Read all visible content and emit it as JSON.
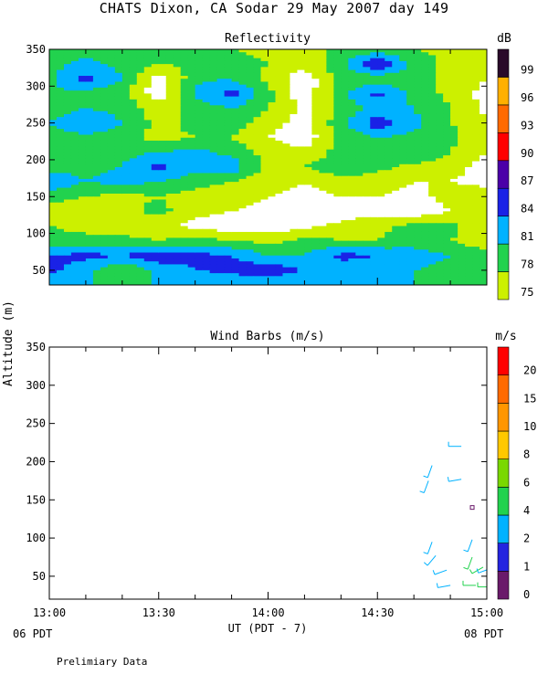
{
  "title": "CHATS Dixon, CA  Sodar  29 May 2007  day 149",
  "footer_note": "Prelimiary Data",
  "y_axis_label": "Altitude (m)",
  "x_axis_label": "UT  (PDT - 7)",
  "x_start_local": "06 PDT",
  "x_end_local": "08 PDT",
  "chart_data": [
    {
      "type": "heatmap",
      "title": "Reflectivity",
      "xlabel": "UT  (PDT - 7)",
      "ylabel": "Altitude (m)",
      "xlim": [
        "13:00",
        "15:00"
      ],
      "ylim": [
        30,
        350
      ],
      "x_ticks": [
        "13:00",
        "13:30",
        "14:00",
        "14:30",
        "15:00"
      ],
      "y_ticks": [
        50,
        100,
        150,
        200,
        250,
        300,
        350
      ],
      "colorbar": {
        "unit": "dB",
        "levels": [
          75,
          78,
          81,
          84,
          87,
          90,
          93,
          96,
          99
        ],
        "colors": [
          "#ccf000",
          "#22d24e",
          "#00b2ff",
          "#1a22e6",
          "#4b00a8",
          "#ff0000",
          "#ff6a00",
          "#ffb000",
          "#2a0a2a"
        ]
      },
      "x_minutes": [
        0,
        10,
        20,
        30,
        40,
        50,
        60,
        70,
        80,
        90,
        100,
        110,
        120
      ],
      "altitudes": [
        350,
        330,
        310,
        290,
        270,
        250,
        230,
        210,
        190,
        170,
        150,
        130,
        110,
        90,
        70,
        50,
        30
      ],
      "z_db": [
        [
          79,
          80,
          79,
          78,
          79,
          78,
          77,
          76,
          79,
          79,
          78,
          77,
          76
        ],
        [
          80,
          82,
          80,
          78,
          79,
          80,
          78,
          76,
          80,
          87,
          80,
          77,
          76
        ],
        [
          80,
          85,
          81,
          73,
          80,
          81,
          77,
          73,
          79,
          79,
          79,
          77,
          75
        ],
        [
          81,
          80,
          79,
          73,
          82,
          85,
          79,
          73,
          80,
          85,
          80,
          77,
          74
        ],
        [
          79,
          81,
          80,
          76,
          79,
          81,
          78,
          74,
          79,
          82,
          81,
          78,
          74
        ],
        [
          81,
          84,
          81,
          77,
          79,
          80,
          76,
          74,
          80,
          86,
          82,
          78,
          76
        ],
        [
          79,
          80,
          79,
          77,
          78,
          78,
          75,
          73,
          79,
          81,
          80,
          79,
          75
        ],
        [
          78,
          79,
          80,
          81,
          82,
          80,
          77,
          76,
          79,
          80,
          81,
          78,
          75
        ],
        [
          79,
          80,
          81,
          85,
          82,
          83,
          77,
          78,
          80,
          79,
          77,
          76,
          74
        ],
        [
          84,
          81,
          82,
          81,
          79,
          78,
          76,
          75,
          77,
          76,
          75,
          75,
          74
        ],
        [
          79,
          78,
          77,
          78,
          77,
          76,
          75,
          74,
          75,
          75,
          74,
          76,
          77
        ],
        [
          77,
          76,
          77,
          79,
          76,
          75,
          74,
          73,
          73,
          74,
          73,
          75,
          76
        ],
        [
          78,
          77,
          76,
          76,
          74,
          73,
          73,
          74,
          76,
          77,
          79,
          79,
          75
        ],
        [
          79,
          79,
          79,
          78,
          79,
          78,
          77,
          79,
          78,
          78,
          80,
          78,
          76
        ],
        [
          84,
          85,
          84,
          86,
          85,
          84,
          81,
          81,
          85,
          84,
          82,
          81,
          79
        ],
        [
          85,
          82,
          78,
          82,
          84,
          85,
          86,
          84,
          82,
          81,
          81,
          80,
          79
        ],
        [
          81,
          81,
          81,
          81,
          81,
          81,
          81,
          81,
          81,
          81,
          81,
          81,
          81
        ]
      ]
    },
    {
      "type": "scatter",
      "title": "Wind Barbs (m/s)",
      "xlabel": "UT  (PDT - 7)",
      "ylabel": "Altitude (m)",
      "xlim": [
        "13:00",
        "15:00"
      ],
      "ylim": [
        20,
        350
      ],
      "x_ticks": [
        "13:00",
        "13:30",
        "14:00",
        "14:30",
        "15:00"
      ],
      "y_ticks": [
        50,
        100,
        150,
        200,
        250,
        300,
        350
      ],
      "colorbar": {
        "unit": "m/s",
        "labels": [
          "0",
          "1",
          "2",
          "4",
          "6",
          "8",
          "10",
          "15",
          "20"
        ],
        "colors": [
          "#6a1a6a",
          "#2424e0",
          "#00b2ff",
          "#22d24e",
          "#7ad800",
          "#ffc800",
          "#ff9600",
          "#ff6a00",
          "#ff0000"
        ]
      },
      "barbs": [
        {
          "t": 113,
          "alt": 220,
          "dir": 270,
          "speed": 2.0,
          "color": "#00b2ff"
        },
        {
          "t": 105,
          "alt": 195,
          "dir": 200,
          "speed": 2.5,
          "color": "#00b2ff"
        },
        {
          "t": 104,
          "alt": 175,
          "dir": 200,
          "speed": 2.5,
          "color": "#00b2ff"
        },
        {
          "t": 113,
          "alt": 177,
          "dir": 260,
          "speed": 2.5,
          "color": "#00b2ff"
        },
        {
          "t": 116,
          "alt": 140,
          "dir": 0,
          "speed": 0.4,
          "color": "#6a1a6a"
        },
        {
          "t": 105,
          "alt": 95,
          "dir": 200,
          "speed": 2.5,
          "color": "#00b2ff"
        },
        {
          "t": 116,
          "alt": 98,
          "dir": 200,
          "speed": 2.5,
          "color": "#00b2ff"
        },
        {
          "t": 106,
          "alt": 77,
          "dir": 220,
          "speed": 2.5,
          "color": "#00b2ff"
        },
        {
          "t": 109,
          "alt": 58,
          "dir": 250,
          "speed": 2.5,
          "color": "#00b2ff"
        },
        {
          "t": 116,
          "alt": 75,
          "dir": 200,
          "speed": 3.0,
          "color": "#22d24e"
        },
        {
          "t": 119,
          "alt": 62,
          "dir": 240,
          "speed": 3.0,
          "color": "#22d24e"
        },
        {
          "t": 121,
          "alt": 60,
          "dir": 250,
          "speed": 3.0,
          "color": "#00b2ff"
        },
        {
          "t": 124,
          "alt": 58,
          "dir": 260,
          "speed": 3.0,
          "color": "#00b2ff"
        },
        {
          "t": 110,
          "alt": 38,
          "dir": 260,
          "speed": 2.0,
          "color": "#00b2ff"
        },
        {
          "t": 117,
          "alt": 38,
          "dir": 270,
          "speed": 3.0,
          "color": "#22d24e"
        },
        {
          "t": 121,
          "alt": 36,
          "dir": 270,
          "speed": 3.0,
          "color": "#22d24e"
        },
        {
          "t": 124,
          "alt": 38,
          "dir": 280,
          "speed": 3.0,
          "color": "#22d24e"
        },
        {
          "t": 125,
          "alt": 70,
          "dir": 300,
          "speed": 1.0,
          "color": "#6a1a6a"
        }
      ]
    }
  ]
}
